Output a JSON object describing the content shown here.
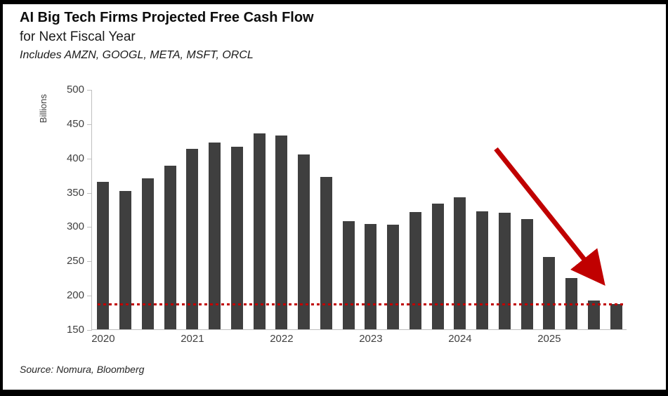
{
  "chart_data": {
    "type": "bar",
    "title": "AI Big Tech Firms Projected Free Cash Flow",
    "subtitle": "for Next Fiscal Year",
    "note": "Includes AMZN, GOOGL, META, MSFT, ORCL",
    "ylabel": "Billions",
    "ylim": [
      150,
      500
    ],
    "yticks": [
      150,
      200,
      250,
      300,
      350,
      400,
      450,
      500
    ],
    "x_year_labels": [
      "2020",
      "2021",
      "2022",
      "2023",
      "2024",
      "2025"
    ],
    "bars_per_year": 4,
    "frequency": "quarterly",
    "values": [
      365,
      352,
      370,
      388,
      413,
      422,
      416,
      436,
      432,
      405,
      372,
      308,
      304,
      303,
      321,
      333,
      342,
      322,
      320,
      311,
      255,
      225,
      192,
      187
    ],
    "bar_color": "#3f3f3f",
    "grid": false,
    "reference_line": {
      "value": 186,
      "color": "#c00000",
      "style": "dotted"
    },
    "annotation_arrow": {
      "color": "#c00000",
      "direction": "down-right"
    },
    "source": "Source: Nomura, Bloomberg"
  }
}
